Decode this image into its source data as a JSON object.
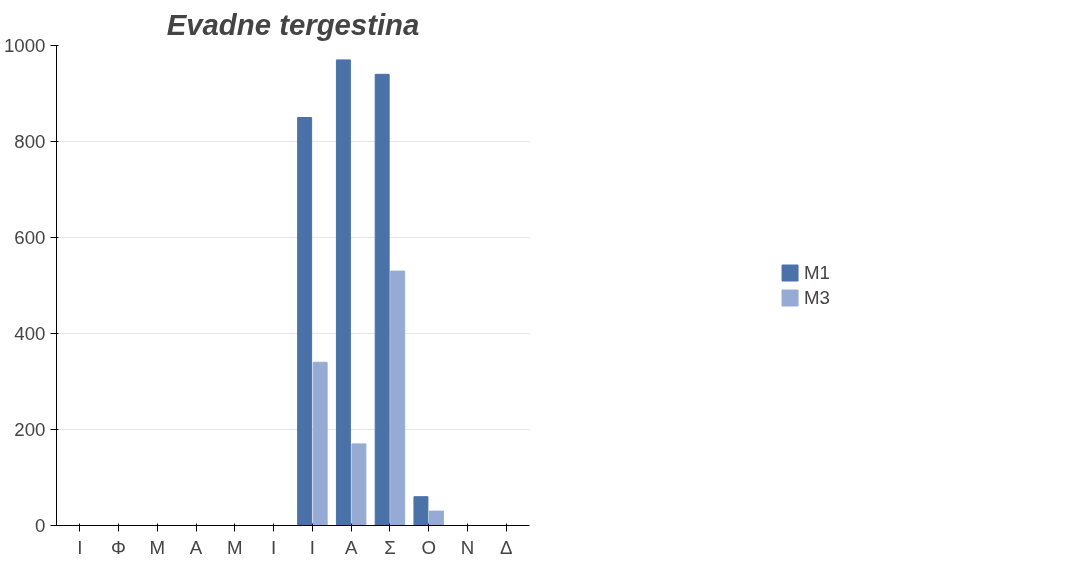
{
  "chart_data": {
    "type": "bar",
    "title": "Evadne tergestina",
    "categories": [
      "Ι",
      "Φ",
      "Μ",
      "Α",
      "Μ",
      "Ι",
      "Ι",
      "Α",
      "Σ",
      "Ο",
      "Ν",
      "Δ"
    ],
    "series": [
      {
        "name": "M1",
        "color": "#4a72a8",
        "values": [
          0,
          0,
          0,
          0,
          0,
          0,
          850,
          970,
          940,
          60,
          0,
          0
        ]
      },
      {
        "name": "M3",
        "color": "#95abd3",
        "values": [
          0,
          0,
          0,
          0,
          0,
          0,
          340,
          170,
          530,
          30,
          0,
          0
        ]
      }
    ],
    "ylim": [
      0,
      1000
    ],
    "yticks": [
      0,
      200,
      400,
      600,
      800,
      1000
    ],
    "grid": "y",
    "legend": "right"
  }
}
